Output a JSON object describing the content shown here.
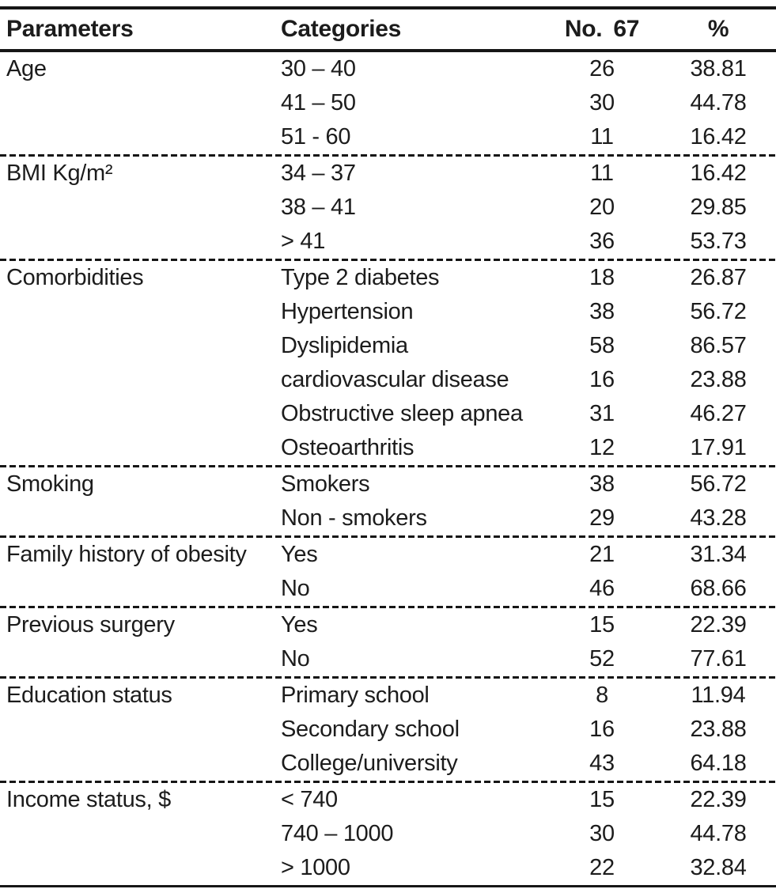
{
  "table": {
    "header": {
      "parameters": "Parameters",
      "categories": "Categories",
      "no_label": "No.",
      "total_n": "67",
      "percent": "%"
    },
    "sections": [
      {
        "parameter": "Age",
        "rows": [
          {
            "category": "30 – 40",
            "no": "26",
            "pct": "38.81"
          },
          {
            "category": "41 – 50",
            "no": "30",
            "pct": "44.78"
          },
          {
            "category": "51 - 60",
            "no": "11",
            "pct": "16.42"
          }
        ]
      },
      {
        "parameter": "BMI Kg/m²",
        "rows": [
          {
            "category": "34 – 37",
            "no": "11",
            "pct": "16.42"
          },
          {
            "category": "38 – 41",
            "no": "20",
            "pct": "29.85"
          },
          {
            "category": "> 41",
            "no": "36",
            "pct": "53.73"
          }
        ]
      },
      {
        "parameter": "Comorbidities",
        "rows": [
          {
            "category": "Type 2 diabetes",
            "no": "18",
            "pct": "26.87"
          },
          {
            "category": "Hypertension",
            "no": "38",
            "pct": "56.72"
          },
          {
            "category": "Dyslipidemia",
            "no": "58",
            "pct": "86.57"
          },
          {
            "category": "cardiovascular disease",
            "no": "16",
            "pct": "23.88"
          },
          {
            "category": "Obstructive sleep apnea",
            "no": "31",
            "pct": "46.27"
          },
          {
            "category": "Osteoarthritis",
            "no": "12",
            "pct": "17.91"
          }
        ]
      },
      {
        "parameter": "Smoking",
        "rows": [
          {
            "category": "Smokers",
            "no": "38",
            "pct": "56.72"
          },
          {
            "category": "Non - smokers",
            "no": "29",
            "pct": "43.28"
          }
        ]
      },
      {
        "parameter": "Family history of obesity",
        "rows": [
          {
            "category": "Yes",
            "no": "21",
            "pct": "31.34"
          },
          {
            "category": "No",
            "no": "46",
            "pct": "68.66"
          }
        ]
      },
      {
        "parameter": "Previous surgery",
        "rows": [
          {
            "category": "Yes",
            "no": "15",
            "pct": "22.39"
          },
          {
            "category": "No",
            "no": "52",
            "pct": "77.61"
          }
        ]
      },
      {
        "parameter": "Education status",
        "rows": [
          {
            "category": "Primary school",
            "no": "8",
            "pct": "11.94"
          },
          {
            "category": "Secondary school",
            "no": "16",
            "pct": "23.88"
          },
          {
            "category": "College/university",
            "no": "43",
            "pct": "64.18"
          }
        ]
      },
      {
        "parameter": "Income status, $",
        "rows": [
          {
            "category": "< 740",
            "no": "15",
            "pct": "22.39"
          },
          {
            "category": "740 – 1000",
            "no": "30",
            "pct": "44.78"
          },
          {
            "category": "> 1000",
            "no": "22",
            "pct": "32.84"
          }
        ]
      }
    ],
    "style": {
      "text_color": "#1c1c1c",
      "rule_color": "#161616",
      "background": "#ffffff"
    }
  }
}
